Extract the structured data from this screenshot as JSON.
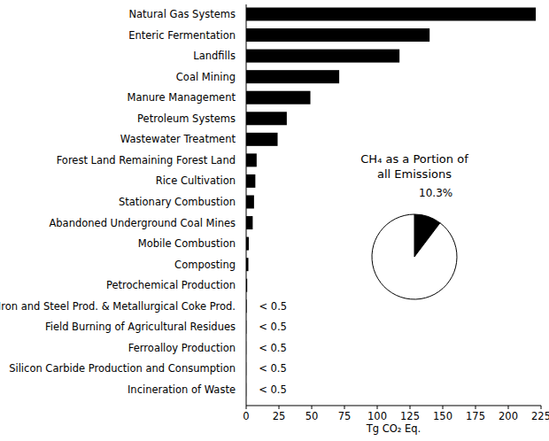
{
  "chart_data": [
    {
      "type": "bar",
      "orientation": "horizontal",
      "categories": [
        "Natural Gas Systems",
        "Enteric Fermentation",
        "Landfills",
        "Coal Mining",
        "Manure Management",
        "Petroleum Systems",
        "Wastewater Treatment",
        "Forest Land Remaining Forest Land",
        "Rice Cultivation",
        "Stationary Combustion",
        "Abandoned Underground Coal Mines",
        "Mobile Combustion",
        "Composting",
        "Petrochemical Production",
        "Iron and Steel Prod. & Metallurgical Coke Prod.",
        "Field Burning of Agricultural Residues",
        "Ferroalloy Production",
        "Silicon Carbide Production and Consumption",
        "Incineration of Waste"
      ],
      "values": [
        221,
        140,
        117,
        71,
        49,
        31,
        24,
        8,
        7,
        6,
        5,
        2,
        1.7,
        0.8,
        0.4,
        0.2,
        0.1,
        0.1,
        0.1
      ],
      "value_labels": [
        null,
        null,
        null,
        null,
        null,
        null,
        null,
        null,
        null,
        null,
        null,
        null,
        null,
        null,
        "< 0.5",
        "< 0.5",
        "< 0.5",
        "< 0.5",
        "< 0.5"
      ],
      "data_labels": true,
      "color": "#000000",
      "x_label": "Tg CO₂ Eq.",
      "xlim": [
        0,
        225
      ],
      "xticks": [
        0,
        25,
        50,
        75,
        100,
        125,
        150,
        175,
        200,
        225
      ],
      "grid": false
    },
    {
      "type": "pie",
      "title": "CH₄ as a Portion of all Emissions",
      "values": [
        10.3,
        89.7
      ],
      "value_labels": [
        "10.3%",
        null
      ],
      "data_labels": true,
      "colors": [
        "#000000",
        "#ffffff"
      ]
    }
  ]
}
